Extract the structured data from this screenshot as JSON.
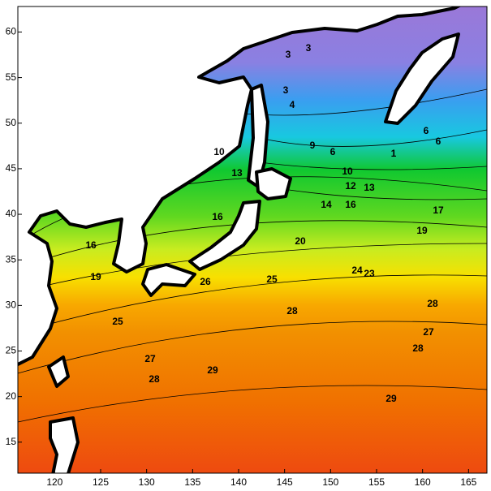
{
  "xlim": [
    116,
    167
  ],
  "ylim": [
    11.6,
    62.8
  ],
  "xticks": [
    120,
    125,
    130,
    135,
    140,
    145,
    150,
    155,
    160,
    165
  ],
  "yticks": [
    15,
    20,
    25,
    30,
    35,
    40,
    45,
    50,
    55,
    60
  ],
  "contour_labels": [
    3,
    3,
    3,
    4,
    9,
    6,
    1,
    6,
    6,
    10,
    13,
    10,
    12,
    13,
    14,
    16,
    17,
    19,
    16,
    20,
    24,
    23,
    25,
    26,
    16,
    19,
    25,
    27,
    28,
    29,
    28,
    27,
    28,
    28,
    29
  ]
}
